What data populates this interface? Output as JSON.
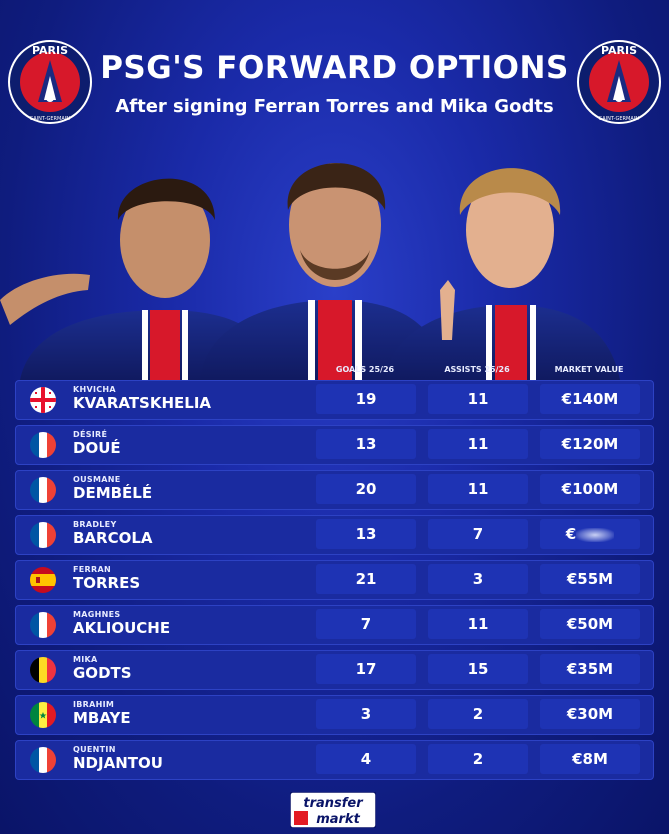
{
  "header": {
    "title": "PSG'S FORWARD OPTIONS",
    "subtitle": "After signing Ferran Torres and Mika Godts"
  },
  "logo": {
    "top_text": "PARIS",
    "bottom_text": "SAINT-GERMAIN"
  },
  "columns": {
    "goals": "GOALS 25/26",
    "assists": "ASSISTS 25/26",
    "value": "MARKET VALUE"
  },
  "players": [
    {
      "first": "KHVICHA",
      "last": "KVARATSKHELIA",
      "flag": "georgia-flag-icon",
      "goals": "19",
      "assists": "11",
      "value": "€140M"
    },
    {
      "first": "DÉSIRÉ",
      "last": "DOUÉ",
      "flag": "france-flag-icon",
      "goals": "13",
      "assists": "11",
      "value": "€120M"
    },
    {
      "first": "OUSMANE",
      "last": "DEMBÉLÉ",
      "flag": "france-flag-icon",
      "goals": "20",
      "assists": "11",
      "value": "€100M"
    },
    {
      "first": "BRADLEY",
      "last": "BARCOLA",
      "flag": "france-flag-icon",
      "goals": "13",
      "assists": "7",
      "value": "€"
    },
    {
      "first": "FERRAN",
      "last": "TORRES",
      "flag": "spain-flag-icon",
      "goals": "21",
      "assists": "3",
      "value": "€55M"
    },
    {
      "first": "MAGHNES",
      "last": "AKLIOUCHE",
      "flag": "france-flag-icon",
      "goals": "7",
      "assists": "11",
      "value": "€50M"
    },
    {
      "first": "MIKA",
      "last": "GODTS",
      "flag": "belgium-flag-icon",
      "goals": "17",
      "assists": "15",
      "value": "€35M"
    },
    {
      "first": "IBRAHIM",
      "last": "MBAYE",
      "flag": "senegal-flag-icon",
      "goals": "3",
      "assists": "2",
      "value": "€30M"
    },
    {
      "first": "QUENTIN",
      "last": "NDJANTOU",
      "flag": "france-flag-icon",
      "goals": "4",
      "assists": "2",
      "value": "€8M"
    }
  ],
  "footer": {
    "brand_line1": "transfer",
    "brand_line2": "markt"
  },
  "colors": {
    "background": "#1a2aa8",
    "row": "#1a2ba0",
    "cell": "#1e33b4",
    "psg_red": "#d7182a"
  }
}
